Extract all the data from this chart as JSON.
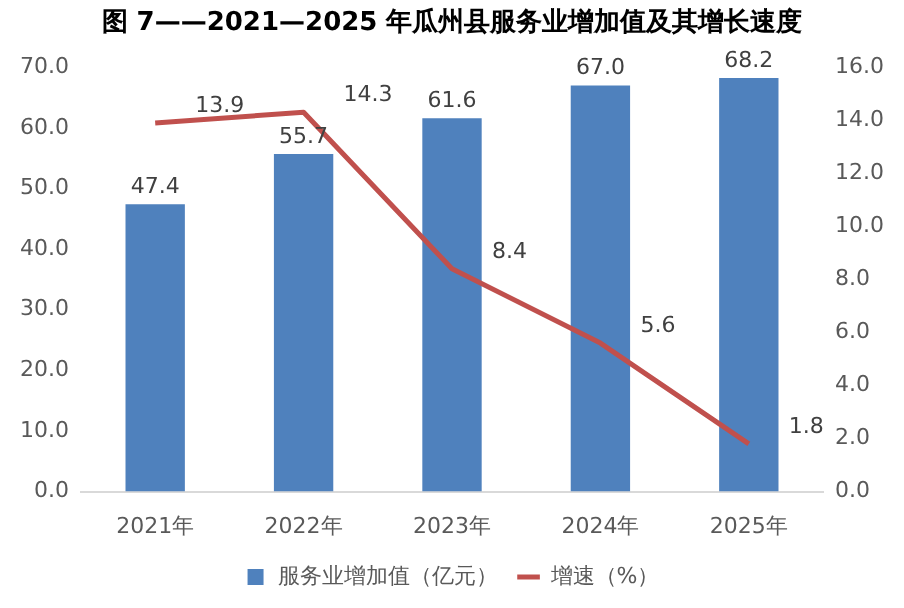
{
  "chart_data": {
    "type": "bar",
    "title": "图 7——2021—2025 年瓜州县服务业增加值及其增长速度",
    "categories": [
      "2021年",
      "2022年",
      "2023年",
      "2024年",
      "2025年"
    ],
    "series": [
      {
        "name": "服务业增加值（亿元）",
        "color": "#4f81bd",
        "values": [
          47.4,
          55.7,
          61.6,
          67.0,
          68.2
        ],
        "value_labels": [
          "47.4",
          "55.7",
          "61.6",
          "67.0",
          "68.2"
        ]
      },
      {
        "name": "增速（%）",
        "type": "line",
        "axis": "y2",
        "color": "#c0504d",
        "values": [
          13.9,
          14.3,
          8.4,
          5.6,
          1.8
        ],
        "value_labels": [
          "13.9",
          "14.3",
          "8.4",
          "5.6",
          "1.8"
        ],
        "marker": "none",
        "line_style": "solid"
      }
    ],
    "ylim": [
      0,
      70
    ],
    "yticks": [
      {
        "value": 0,
        "label": "0.0"
      },
      {
        "value": 10,
        "label": "10.0"
      },
      {
        "value": 20,
        "label": "20.0"
      },
      {
        "value": 30,
        "label": "30.0"
      },
      {
        "value": 40,
        "label": "40.0"
      },
      {
        "value": 50,
        "label": "50.0"
      },
      {
        "value": 60,
        "label": "60.0"
      },
      {
        "value": 70,
        "label": "70.0"
      }
    ],
    "y2lim": [
      0,
      16
    ],
    "y2ticks": [
      {
        "value": 0,
        "label": "0.0"
      },
      {
        "value": 2,
        "label": "2.0"
      },
      {
        "value": 4,
        "label": "4.0"
      },
      {
        "value": 6,
        "label": "6.0"
      },
      {
        "value": 8,
        "label": "8.0"
      },
      {
        "value": 10,
        "label": "10.0"
      },
      {
        "value": 12,
        "label": "12.0"
      },
      {
        "value": 14,
        "label": "14.0"
      },
      {
        "value": 16,
        "label": "16.0"
      }
    ],
    "grid": false,
    "legend": "bottom"
  }
}
